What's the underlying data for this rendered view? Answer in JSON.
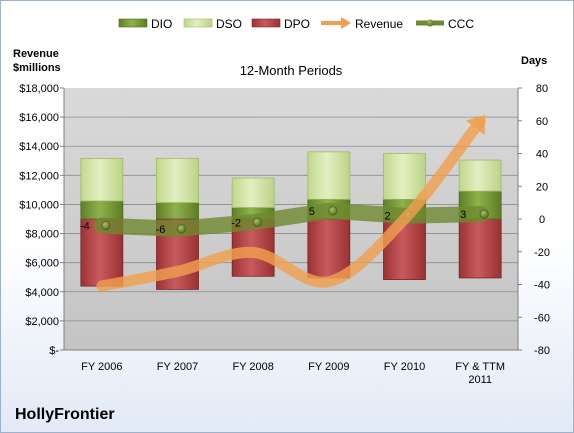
{
  "chart_data": {
    "type": "bar",
    "title": "12-Month Periods",
    "company": "HollyFrontier",
    "y_left_label_lines": [
      "Revenue",
      "$millions"
    ],
    "y_right_label": "Days",
    "y_left_ticks": [
      "$18,000",
      "$16,000",
      "$14,000",
      "$12,000",
      "$10,000",
      "$8,000",
      "$6,000",
      "$4,000",
      "$2,000",
      "$-"
    ],
    "y_right_ticks": [
      "80",
      "60",
      "40",
      "20",
      "0",
      "-20",
      "-40",
      "-60",
      "-80"
    ],
    "ylim_left": [
      0,
      18000
    ],
    "ylim_right": [
      -80,
      80
    ],
    "categories": [
      {
        "lines": [
          "FY 2006"
        ]
      },
      {
        "lines": [
          "FY 2007"
        ]
      },
      {
        "lines": [
          "FY 2008"
        ]
      },
      {
        "lines": [
          "FY 2009"
        ]
      },
      {
        "lines": [
          "FY 2010"
        ]
      },
      {
        "lines": [
          "FY & TTM",
          "2011"
        ]
      }
    ],
    "series": [
      {
        "name": "DIO",
        "axis": "right",
        "color": "#7ea03c",
        "values": [
          11,
          10,
          7,
          12,
          12,
          17
        ]
      },
      {
        "name": "DSO",
        "axis": "right",
        "color": "#d5e6ab",
        "values": [
          26,
          27,
          18,
          29,
          28,
          19
        ]
      },
      {
        "name": "DPO",
        "axis": "right",
        "color": "#b94a4c",
        "values": [
          -41,
          -43,
          -35,
          -36,
          -37,
          -36
        ]
      },
      {
        "name": "Revenue",
        "axis": "left",
        "color": "#f0a050",
        "values": [
          4400,
          5400,
          6700,
          4700,
          9000,
          15700
        ]
      },
      {
        "name": "CCC",
        "axis": "right",
        "color": "#6e8a30",
        "values": [
          -4,
          -6,
          -2,
          5,
          2,
          3
        ]
      }
    ],
    "ccc_labels": [
      "-4",
      "-6",
      "-2",
      "5",
      "2",
      "3"
    ],
    "legend_position": "top",
    "grid": true
  }
}
